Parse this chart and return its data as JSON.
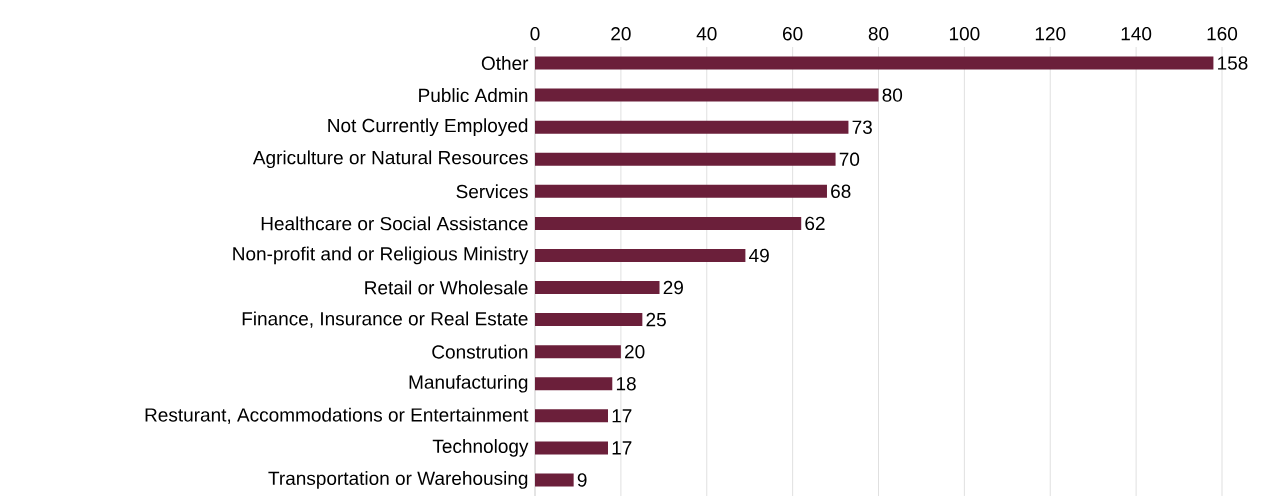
{
  "chart_data": {
    "type": "bar",
    "orientation": "horizontal",
    "categories": [
      "Other",
      "Public Admin",
      "Not Currently Employed",
      "Agriculture or Natural Resources",
      "Services",
      "Healthcare or Social Assistance",
      "Non-profit and or Religious Ministry",
      "Retail or Wholesale",
      "Finance, Insurance or Real Estate",
      "Constrution",
      "Manufacturing",
      "Resturant, Accommodations or Entertainment",
      "Technology",
      "Transportation or Warehousing"
    ],
    "values": [
      158,
      80,
      73,
      70,
      68,
      62,
      49,
      29,
      25,
      20,
      18,
      17,
      17,
      9
    ],
    "color": "#6b1f3a",
    "xlim": [
      0,
      160
    ],
    "xticks": [
      0,
      20,
      40,
      60,
      80,
      100,
      120,
      140,
      160
    ],
    "grid": "x",
    "data_labels": true
  }
}
